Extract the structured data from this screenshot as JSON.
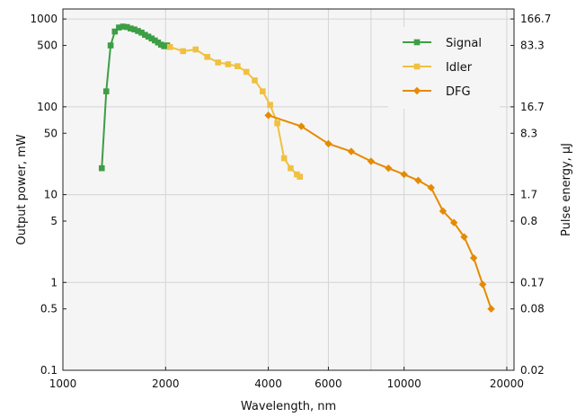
{
  "chart_data": {
    "type": "line",
    "xlabel": "Wavelength, nm",
    "ylabel": "Output power, mW",
    "y2label": "Pulse energy, µJ",
    "x_scale": "log",
    "y_scale": "log",
    "xlim": [
      1000,
      21000
    ],
    "ylim": [
      0.1,
      1300
    ],
    "x_ticks": [
      {
        "value": 1000,
        "label": "1000"
      },
      {
        "value": 2000,
        "label": "2000"
      },
      {
        "value": 4000,
        "label": "4000"
      },
      {
        "value": 6000,
        "label": "6000"
      },
      {
        "value": 10000,
        "label": "10000"
      },
      {
        "value": 20000,
        "label": "20000"
      }
    ],
    "x_minor_grid": [
      8000
    ],
    "y_ticks": [
      {
        "value": 1000,
        "label": "1000"
      },
      {
        "value": 500,
        "label": "500"
      },
      {
        "value": 100,
        "label": "100"
      },
      {
        "value": 50,
        "label": "50"
      },
      {
        "value": 10,
        "label": "10"
      },
      {
        "value": 5,
        "label": "5"
      },
      {
        "value": 1,
        "label": "1"
      },
      {
        "value": 0.5,
        "label": "0.5"
      },
      {
        "value": 0.1,
        "label": "0.1"
      }
    ],
    "y2_ticks": [
      {
        "value": 1000,
        "label": "166.7"
      },
      {
        "value": 500,
        "label": "83.3"
      },
      {
        "value": 100,
        "label": "16.7"
      },
      {
        "value": 50,
        "label": "8.3"
      },
      {
        "value": 10,
        "label": "1.7"
      },
      {
        "value": 5,
        "label": "0.8"
      },
      {
        "value": 1,
        "label": "0.17"
      },
      {
        "value": 0.5,
        "label": "0.08"
      },
      {
        "value": 0.1,
        "label": "0.02"
      }
    ],
    "grid": true,
    "legend_position": "top-right",
    "series": [
      {
        "name": "Signal",
        "color": "#3d9e45",
        "marker": "square",
        "x": [
          1300,
          1340,
          1380,
          1420,
          1460,
          1500,
          1540,
          1580,
          1620,
          1660,
          1700,
          1740,
          1780,
          1820,
          1860,
          1900,
          1940,
          1980,
          2020
        ],
        "y": [
          20,
          150,
          500,
          720,
          800,
          820,
          810,
          780,
          760,
          730,
          700,
          660,
          630,
          600,
          570,
          540,
          510,
          490,
          500
        ]
      },
      {
        "name": "Idler",
        "color": "#f0c040",
        "marker": "square",
        "x": [
          2060,
          2250,
          2450,
          2650,
          2850,
          3050,
          3250,
          3450,
          3650,
          3850,
          4050,
          4250,
          4450,
          4650,
          4850,
          4950
        ],
        "y": [
          480,
          430,
          450,
          370,
          320,
          305,
          290,
          250,
          200,
          150,
          105,
          65,
          26,
          20,
          17,
          16
        ]
      },
      {
        "name": "DFG",
        "color": "#e68a00",
        "marker": "diamond",
        "x": [
          4000,
          5000,
          6000,
          7000,
          8000,
          9000,
          10000,
          11000,
          12000,
          13000,
          14000,
          15000,
          16000,
          17000,
          18000
        ],
        "y": [
          80,
          60,
          38,
          31,
          24,
          20,
          17,
          14.5,
          12,
          6.5,
          4.8,
          3.3,
          1.9,
          0.95,
          0.5
        ]
      }
    ]
  }
}
